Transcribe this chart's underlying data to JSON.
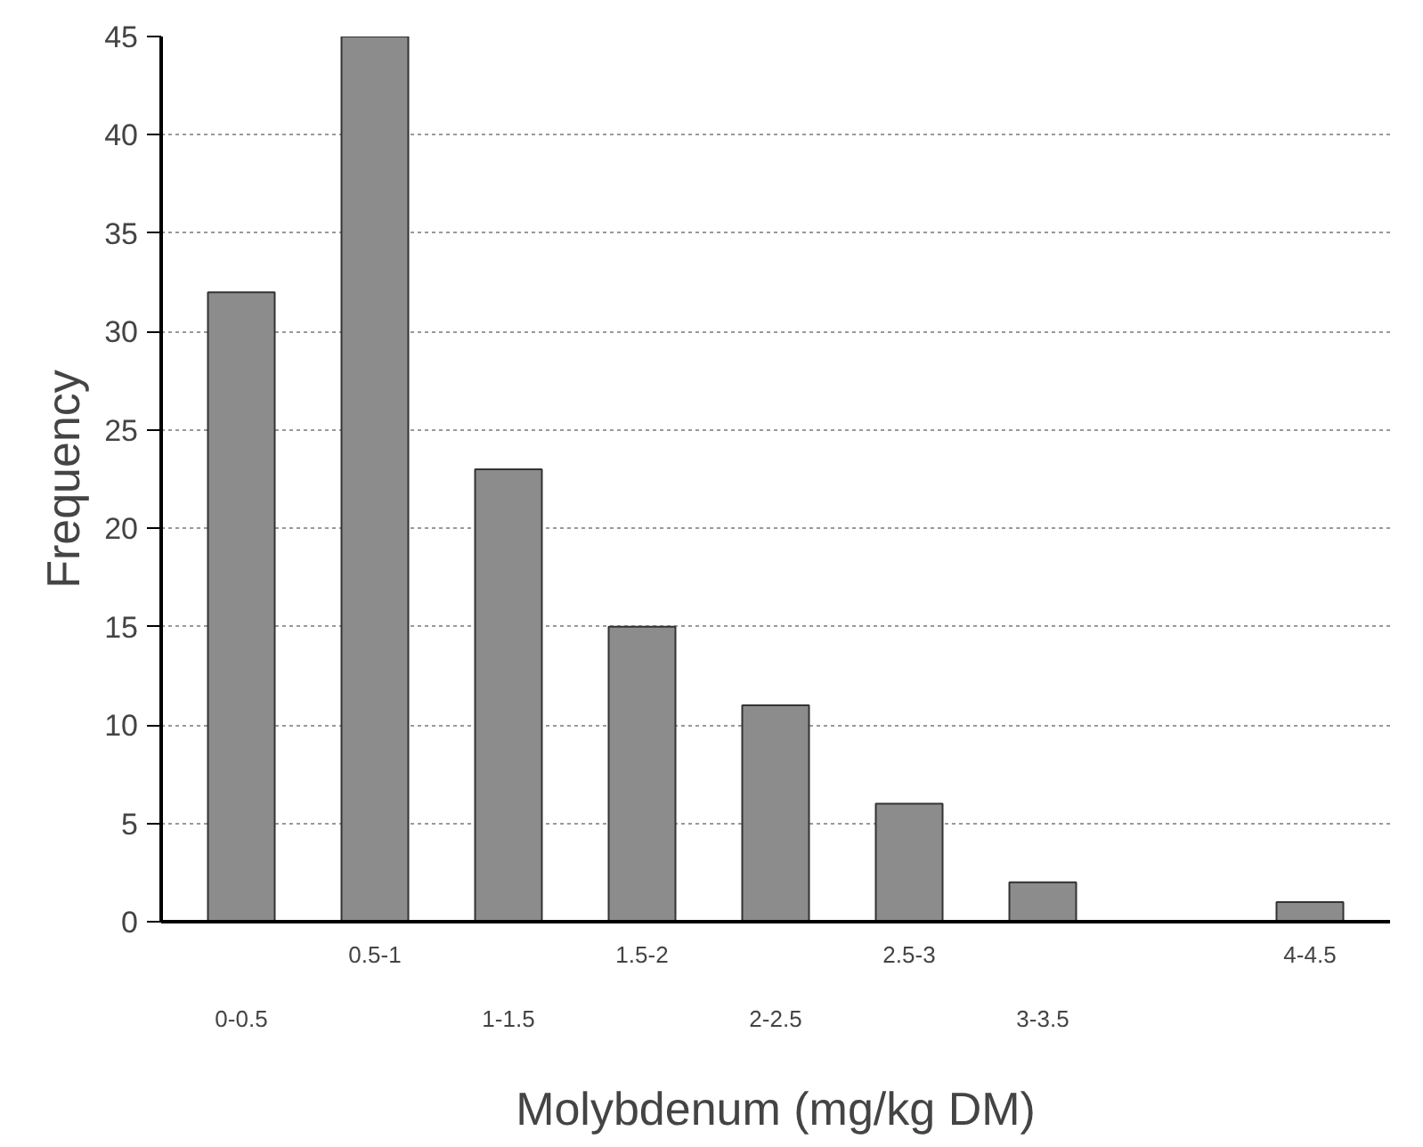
{
  "chart_data": {
    "type": "bar",
    "xlabel": "Molybdenum (mg/kg DM)",
    "ylabel": "Frequency",
    "categories": [
      "0-0.5",
      "0.5-1",
      "1-1.5",
      "1.5-2",
      "2-2.5",
      "2.5-3",
      "3-3.5",
      null,
      "4-4.5"
    ],
    "values": [
      32,
      45,
      23,
      15,
      11,
      6,
      2,
      null,
      1
    ],
    "color": "#8c8c8c",
    "ylim": [
      0,
      45
    ],
    "yticks": [
      0,
      5,
      10,
      15,
      20,
      25,
      30,
      35,
      40,
      45
    ],
    "grid": "y"
  }
}
